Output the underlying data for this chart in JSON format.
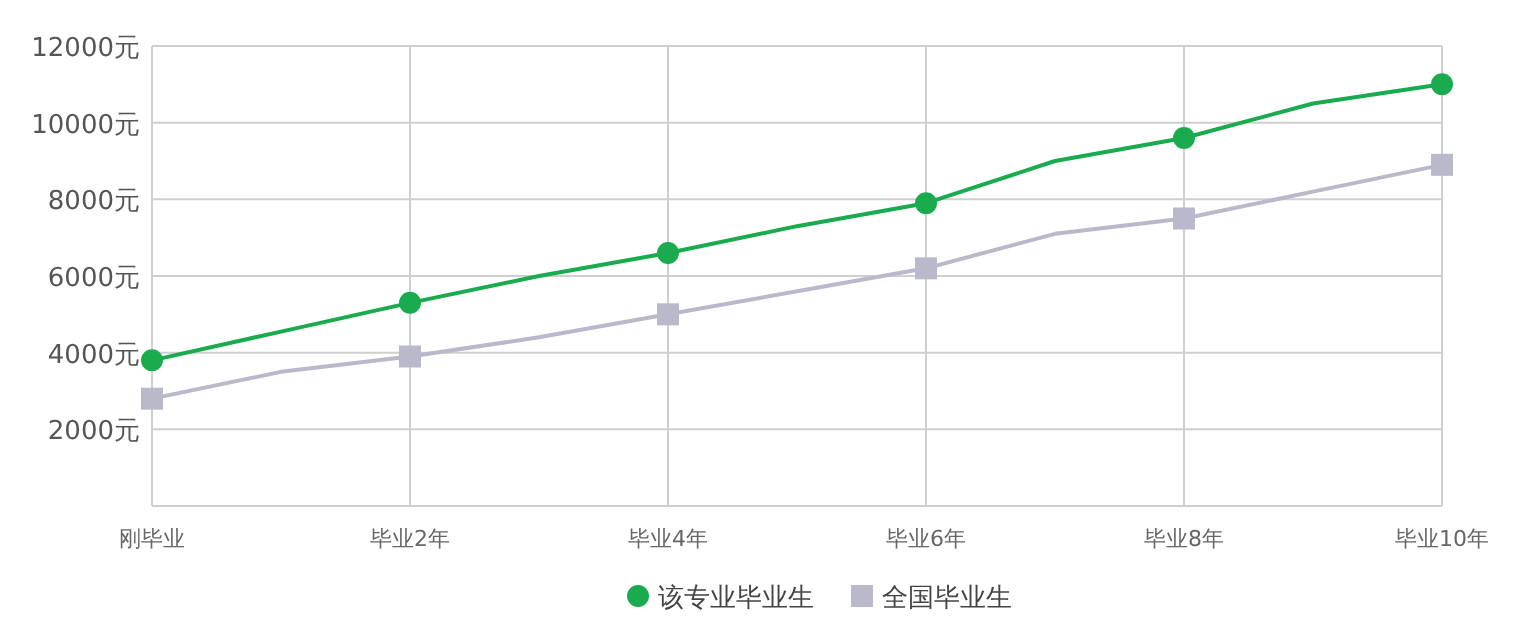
{
  "chart_data": {
    "type": "line",
    "categories": [
      "刚毕业",
      null,
      "毕业2年",
      null,
      "毕业4年",
      null,
      "毕业6年",
      null,
      "毕业8年",
      null,
      "毕业10年"
    ],
    "series": [
      {
        "name": "该专业毕业生",
        "color": "#1aab4f",
        "marker": "circle",
        "values": [
          3800,
          4550,
          5300,
          6000,
          6600,
          7300,
          7900,
          9000,
          9600,
          10500,
          11000
        ]
      },
      {
        "name": "全国毕业生",
        "color": "#b9b9cb",
        "marker": "square",
        "values": [
          2800,
          3500,
          3900,
          4400,
          5000,
          5600,
          6200,
          7100,
          7500,
          8200,
          8900
        ]
      }
    ],
    "ylim": [
      0,
      12000
    ],
    "yticks": [
      {
        "value": 0,
        "label": null
      },
      {
        "value": 2000,
        "label": "2000元"
      },
      {
        "value": 4000,
        "label": "4000元"
      },
      {
        "value": 6000,
        "label": "6000元"
      },
      {
        "value": 8000,
        "label": "8000元"
      },
      {
        "value": 10000,
        "label": "10000元"
      },
      {
        "value": 12000,
        "label": "12000元"
      }
    ],
    "grid": true,
    "legend": "bottom",
    "line_style": "solid"
  }
}
